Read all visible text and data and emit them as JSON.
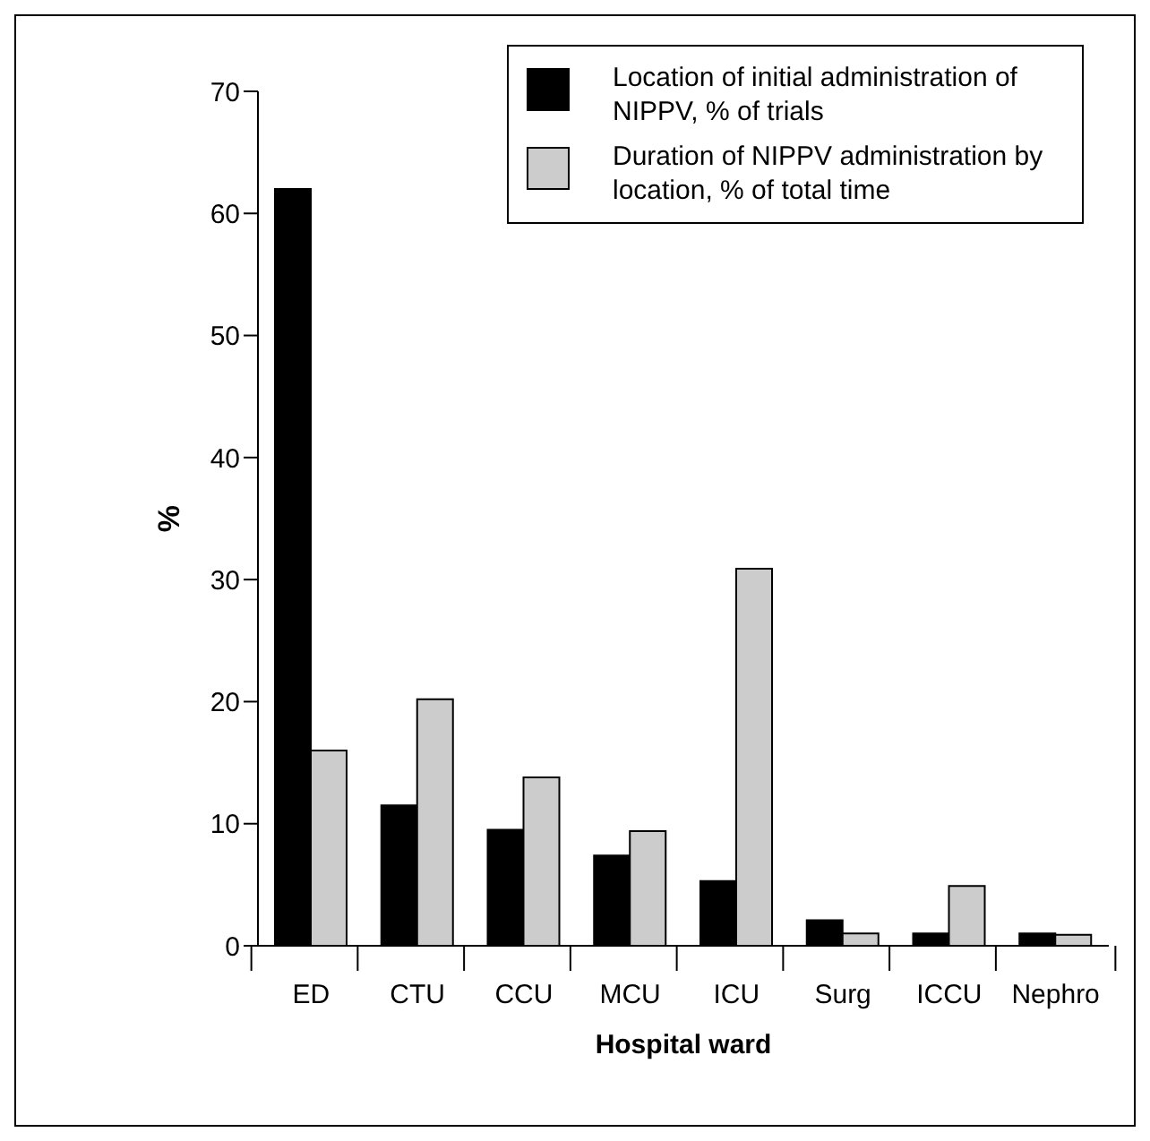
{
  "chart_data": {
    "type": "bar",
    "xlabel": "Hospital ward",
    "ylabel": "%",
    "categories": [
      "ED",
      "CTU",
      "CCU",
      "MCU",
      "ICU",
      "Surg",
      "ICCU",
      "Nephro"
    ],
    "series": [
      {
        "name": "Location of initial administration of NIPPV, % of trials",
        "color": "#000000",
        "values": [
          62,
          11.5,
          9.5,
          7.4,
          5.3,
          2.1,
          1.0,
          1.0
        ]
      },
      {
        "name": "Duration of NIPPV administration by location, % of total time",
        "color": "#cccccc",
        "values": [
          16,
          20.2,
          13.8,
          9.4,
          30.9,
          1.0,
          4.9,
          0.9
        ]
      }
    ],
    "ylim": [
      0,
      70
    ],
    "yticks": [
      0,
      10,
      20,
      30,
      40,
      50,
      60,
      70
    ],
    "grid": false,
    "legend": "top right"
  }
}
